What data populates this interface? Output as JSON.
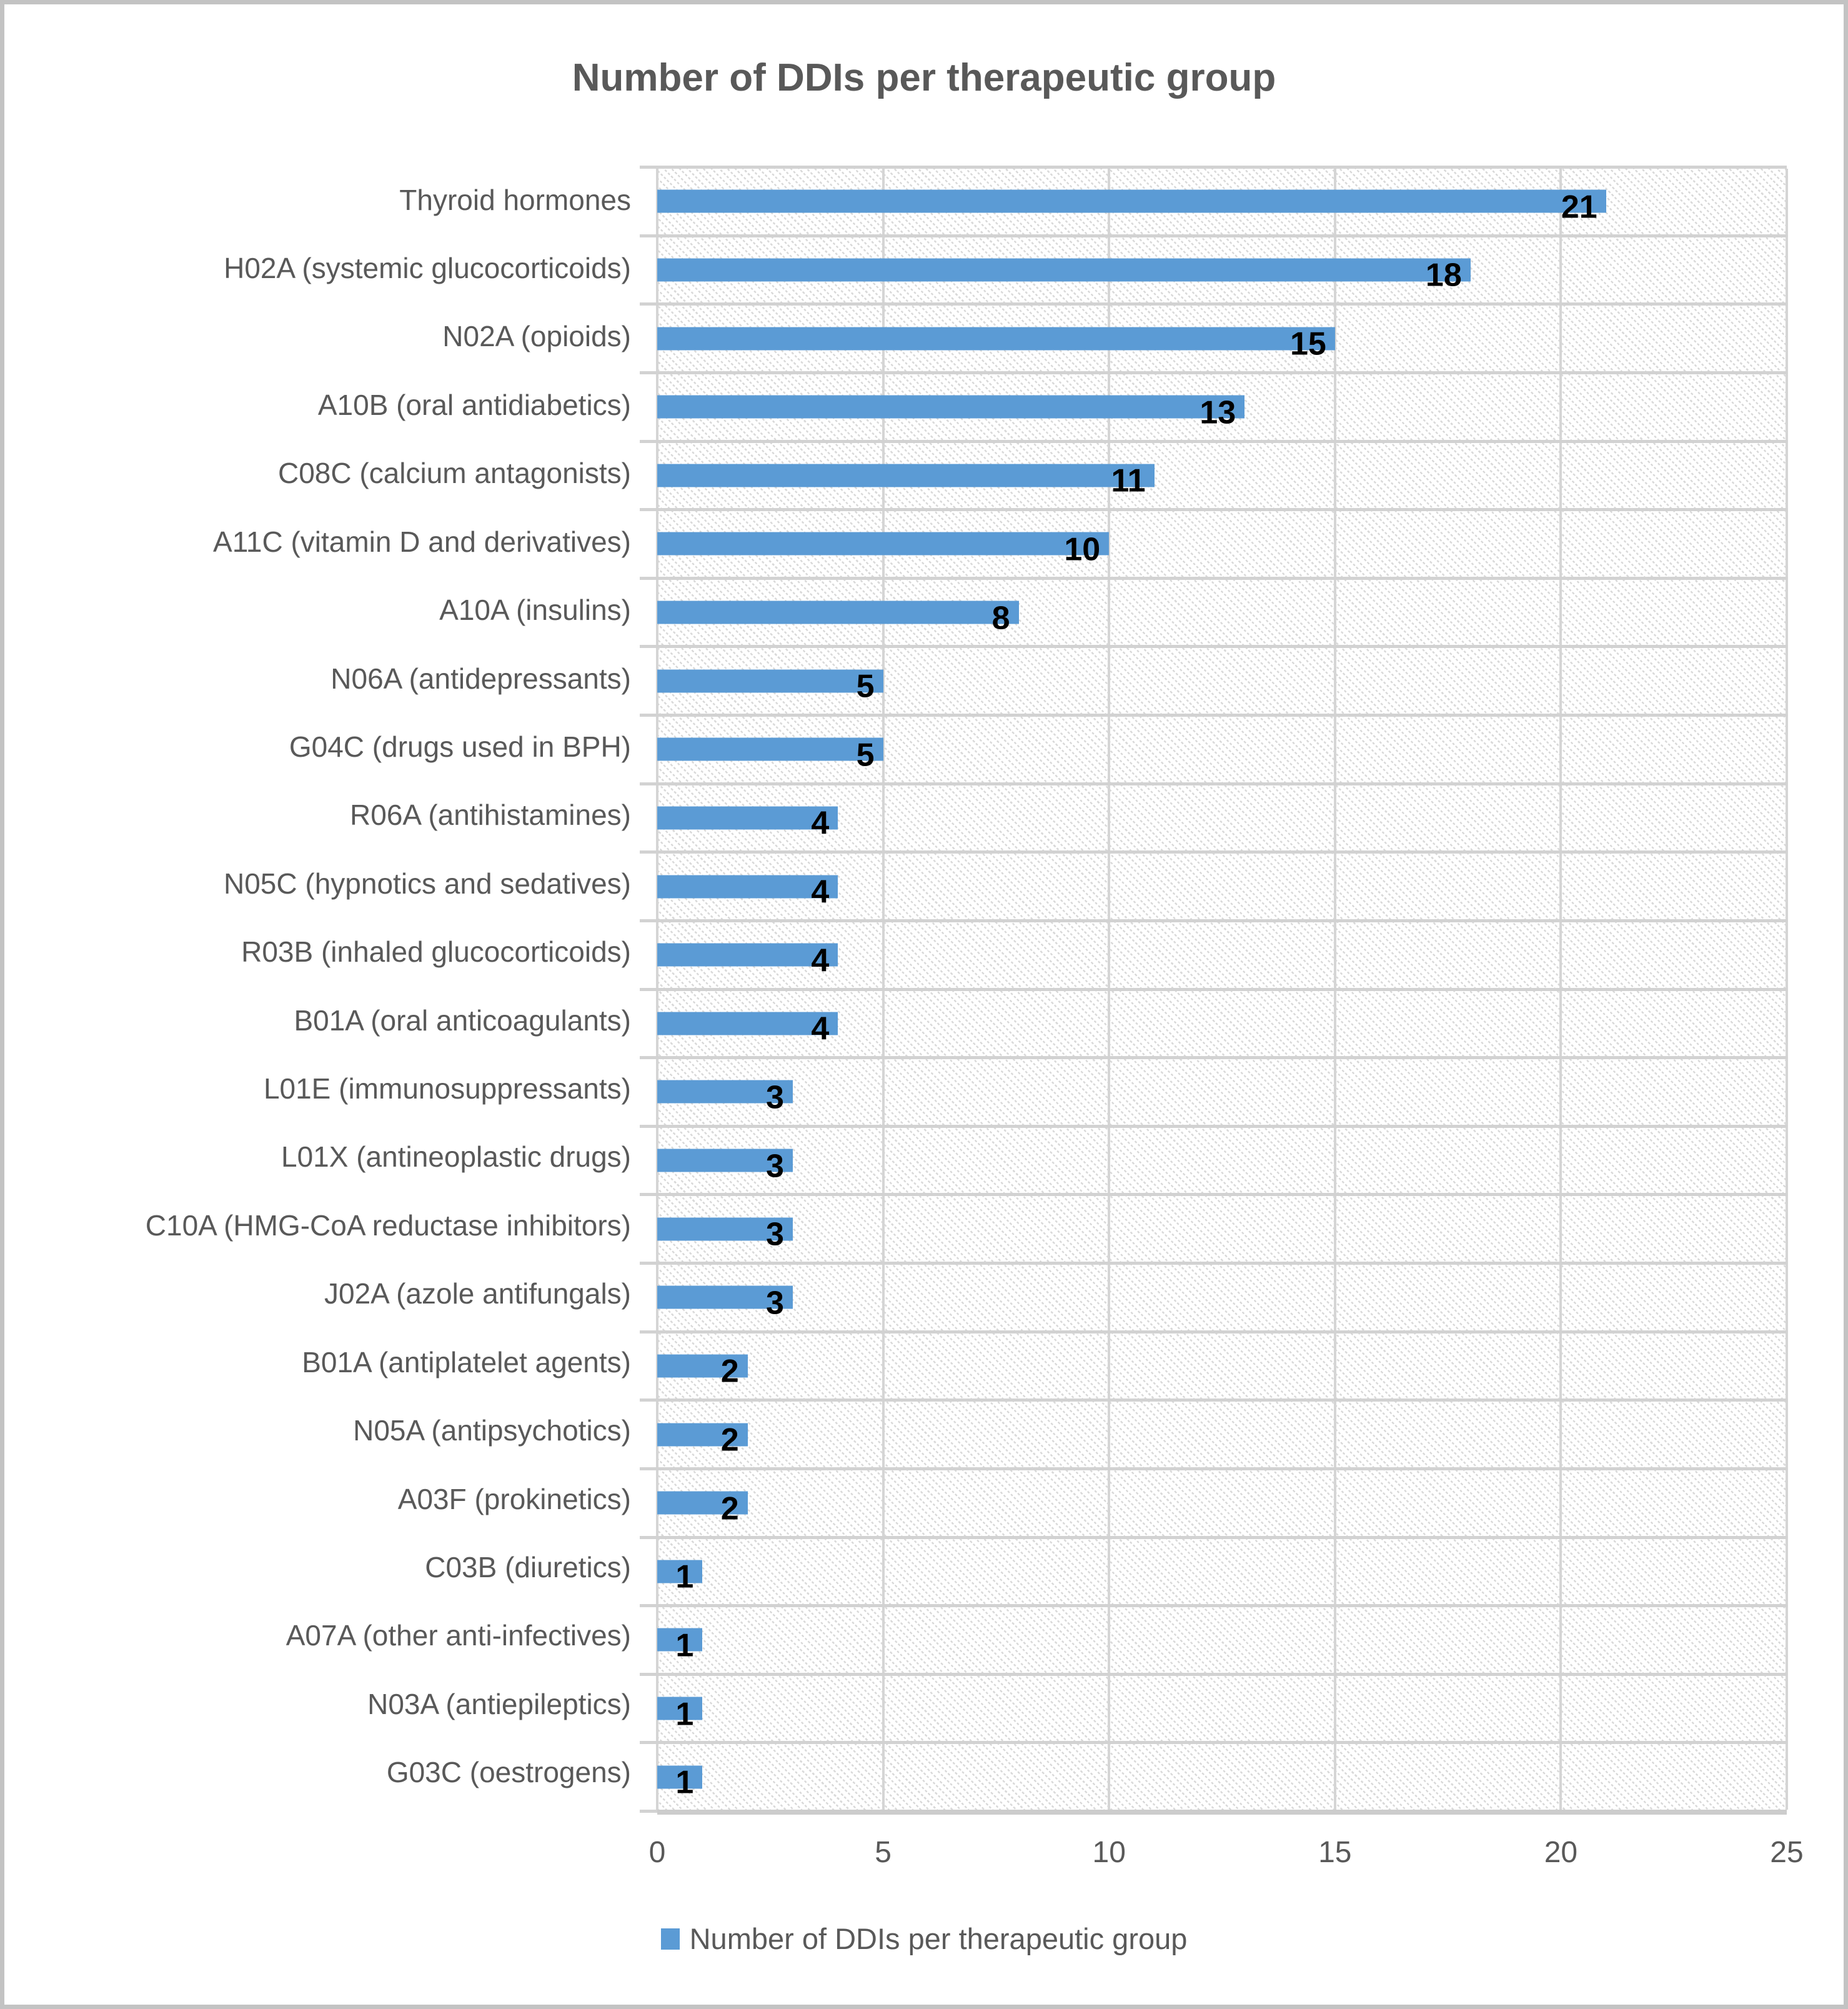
{
  "title": "Number of DDIs per therapeutic group",
  "legend": {
    "label": "Number of DDIs per therapeutic group",
    "position": "bottom"
  },
  "colors": {
    "bar": "#5B9BD5",
    "data_label": "#000000",
    "text": "#595959",
    "gridline": "#D5D5D5",
    "hatch": "#D9D9D9",
    "frame": "#C3C3C3"
  },
  "chart_data": {
    "type": "bar",
    "orientation": "horizontal",
    "title": "Number of DDIs per therapeutic group",
    "categories": [
      "Thyroid hormones",
      "H02A (systemic glucocorticoids)",
      "N02A (opioids)",
      "A10B (oral antidiabetics)",
      "C08C (calcium antagonists)",
      "A11C (vitamin D and derivatives)",
      "A10A (insulins)",
      "N06A (antidepressants)",
      "G04C (drugs used in BPH)",
      "R06A (antihistamines)",
      "N05C (hypnotics and sedatives)",
      "R03B (inhaled glucocorticoids)",
      "B01A (oral anticoagulants)",
      "L01E (immunosuppressants)",
      "L01X (antineoplastic drugs)",
      "C10A (HMG-CoA reductase inhibitors)",
      "J02A (azole antifungals)",
      "B01A (antiplatelet agents)",
      "N05A (antipsychotics)",
      "A03F (prokinetics)",
      "C03B (diuretics)",
      "A07A (other anti-infectives)",
      "N03A (antiepileptics)",
      "G03C (oestrogens)"
    ],
    "values": [
      21,
      18,
      15,
      13,
      11,
      10,
      8,
      5,
      5,
      4,
      4,
      4,
      4,
      3,
      3,
      3,
      3,
      2,
      2,
      2,
      1,
      1,
      1,
      1
    ],
    "data_labels": true,
    "xlabel": "",
    "ylabel": "",
    "xlim": [
      0,
      25
    ],
    "xticks": [
      0,
      5,
      10,
      15,
      20,
      25
    ],
    "grid": true,
    "legend": "Number of DDIs per therapeutic group",
    "legend_position": "bottom"
  }
}
